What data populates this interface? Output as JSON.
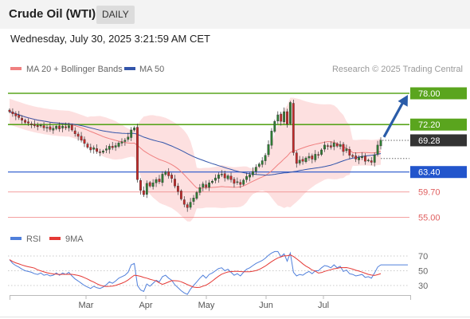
{
  "header": {
    "title": "Crude Oil (WTI)",
    "timeframe": "DAILY",
    "timestamp": "Wednesday, July 30, 2025 3:21:59 AM CET"
  },
  "colors": {
    "ma20": "#f08080",
    "bollinger_fill": "#fde0e0",
    "ma50": "#3355aa",
    "resistance": "#5aa51e",
    "support": "#2255cc",
    "weak_level": "#f08080",
    "candle_up": "#2e7d32",
    "candle_down": "#c62828",
    "arrow": "#2a5ca8",
    "rsi": "#4f7fdb",
    "rsi_ma": "#e53935"
  },
  "chart_data": [
    {
      "type": "line",
      "subtype": "candlestick",
      "legend": [
        {
          "name": "MA 20 + Bollinger Bands",
          "color": "#f08080"
        },
        {
          "name": "MA 50",
          "color": "#3355aa"
        }
      ],
      "source": "Research © 2025 Trading Central",
      "x_ticks": [
        "Mar",
        "Apr",
        "May",
        "Jun",
        "Jul"
      ],
      "ylim": [
        54,
        80
      ],
      "levels": [
        {
          "label": "78.00",
          "value": 78.0,
          "kind": "resistance"
        },
        {
          "label": "72.20",
          "value": 72.2,
          "kind": "resistance"
        },
        {
          "label": "69.28",
          "value": 69.28,
          "kind": "last"
        },
        {
          "label": "63.40",
          "value": 63.4,
          "kind": "support"
        },
        {
          "label": "59.70",
          "value": 59.7,
          "kind": "weak"
        },
        {
          "label": "55.00",
          "value": 55.0,
          "kind": "weak"
        }
      ],
      "close": [
        74.6,
        74.2,
        73.8,
        73.5,
        73.0,
        72.6,
        72.5,
        72.3,
        72.0,
        71.8,
        72.1,
        71.6,
        71.7,
        71.3,
        71.5,
        71.9,
        71.4,
        71.9,
        71.6,
        72.0,
        71.2,
        70.5,
        70.0,
        69.3,
        68.7,
        68.0,
        67.5,
        67.9,
        67.2,
        67.0,
        67.3,
        67.7,
        68.2,
        67.9,
        68.3,
        68.8,
        69.0,
        69.3,
        69.9,
        71.2,
        71.6,
        62.0,
        60.0,
        59.2,
        61.3,
        60.8,
        61.4,
        62.0,
        61.6,
        63.0,
        63.4,
        62.7,
        62.2,
        60.8,
        59.8,
        58.4,
        57.4,
        56.8,
        57.8,
        58.6,
        59.6,
        60.5,
        61.2,
        60.6,
        61.4,
        61.7,
        62.3,
        62.9,
        63.0,
        62.3,
        62.7,
        62.0,
        61.3,
        61.6,
        61.1,
        61.9,
        62.6,
        62.9,
        63.5,
        64.3,
        64.9,
        65.5,
        66.5,
        68.5,
        71.0,
        72.8,
        74.0,
        72.8,
        74.6,
        72.3,
        76.3,
        67.0,
        65.0,
        65.6,
        65.4,
        66.0,
        66.3,
        65.8,
        66.7,
        66.6,
        67.5,
        68.4,
        68.3,
        68.0,
        68.8,
        68.2,
        68.5,
        67.2,
        67.7,
        66.5,
        66.3,
        65.8,
        66.1,
        66.3,
        65.4,
        65.6,
        65.2,
        66.6,
        68.4,
        69.3
      ],
      "dates_range": [
        "2025-02-01",
        "2025-07-29"
      ]
    },
    {
      "type": "line",
      "legend": [
        {
          "name": "RSI",
          "color": "#4f7fdb"
        },
        {
          "name": "9MA",
          "color": "#e53935"
        }
      ],
      "yticks": [
        30,
        50,
        70
      ],
      "ylim": [
        20,
        80
      ],
      "rsi": [
        65,
        60,
        57,
        55,
        52,
        50,
        49,
        48,
        46,
        45,
        47,
        44,
        45,
        43,
        44,
        47,
        44,
        47,
        45,
        48,
        43,
        39,
        36,
        33,
        30,
        28,
        26,
        29,
        27,
        26,
        28,
        31,
        35,
        33,
        36,
        40,
        42,
        44,
        48,
        58,
        60,
        30,
        24,
        22,
        32,
        29,
        33,
        37,
        35,
        42,
        44,
        40,
        37,
        31,
        27,
        23,
        20,
        18,
        25,
        30,
        35,
        40,
        44,
        40,
        45,
        47,
        50,
        53,
        54,
        50,
        52,
        48,
        44,
        46,
        43,
        48,
        52,
        54,
        57,
        60,
        62,
        64,
        67,
        71,
        74,
        76,
        76,
        69,
        73,
        63,
        74,
        48,
        43,
        45,
        44,
        47,
        49,
        46,
        50,
        50,
        54,
        57,
        56,
        54,
        58,
        54,
        56,
        49,
        51,
        46,
        45,
        43,
        44,
        45,
        41,
        42,
        40,
        47,
        55,
        58
      ]
    }
  ],
  "rsi_legend": {
    "rsi": "RSI",
    "ma": "9MA"
  }
}
